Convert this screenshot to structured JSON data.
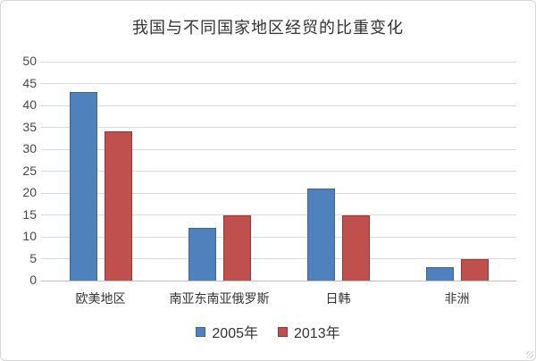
{
  "chart_data": {
    "type": "bar",
    "title": "我国与不同国家地区经贸的比重变化",
    "categories": [
      "欧美地区",
      "南亚东南亚俄罗斯",
      "日韩",
      "非洲"
    ],
    "series": [
      {
        "name": "2005年",
        "color": "#4F81BD",
        "border_color": "#3D6399",
        "values": [
          43,
          12,
          21,
          3
        ]
      },
      {
        "name": "2013年",
        "color": "#C0504D",
        "border_color": "#953735",
        "values": [
          34,
          15,
          15,
          5
        ]
      }
    ],
    "xlabel": "",
    "ylabel": "",
    "ylim": [
      0,
      50
    ],
    "ytick_step": 5,
    "yticks": [
      0,
      5,
      10,
      15,
      20,
      25,
      30,
      35,
      40,
      45,
      50
    ],
    "grid": true,
    "gridline_color": "#d9d9d9",
    "axis_line_color": "#bfbfbf",
    "legend_position": "bottom"
  }
}
